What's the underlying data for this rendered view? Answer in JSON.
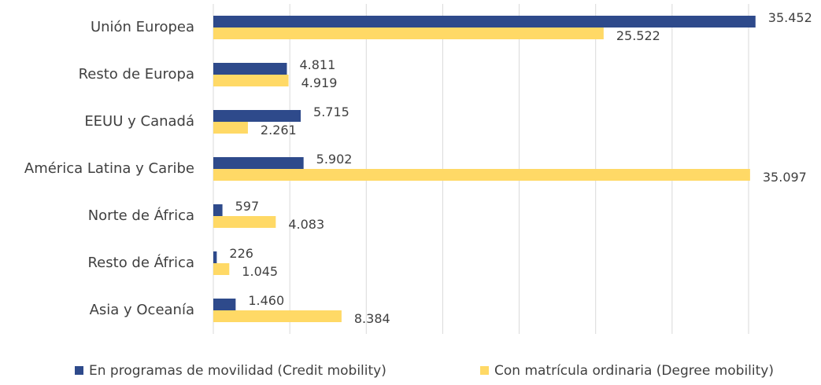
{
  "chart_data": {
    "type": "bar",
    "orientation": "horizontal",
    "categories": [
      "Unión Europea",
      "Resto de Europa",
      "EEUU y Canadá",
      "América Latina y Caribe",
      "Norte de África",
      "Resto de África",
      "Asia y Oceanía"
    ],
    "series": [
      {
        "name": "En programas de movilidad (Credit mobility)",
        "color": "#2e4a8b",
        "values": [
          35452,
          4811,
          5715,
          5902,
          597,
          226,
          1460
        ],
        "value_labels": [
          "35.452",
          "4.811",
          "5.715",
          "5.902",
          "597",
          "226",
          "1.460"
        ]
      },
      {
        "name": "Con matrícula ordinaria (Degree mobility)",
        "color": "#ffd966",
        "values": [
          25522,
          4919,
          2261,
          35097,
          4083,
          1045,
          8384
        ],
        "value_labels": [
          "25.522",
          "4.919",
          "2.261",
          "35.097",
          "4.083",
          "1.045",
          "8.384"
        ]
      }
    ],
    "xlim": [
      0,
      35000
    ],
    "xgrid": [
      0,
      5000,
      10000,
      15000,
      20000,
      25000,
      30000,
      35000
    ],
    "legend": "bottom"
  }
}
